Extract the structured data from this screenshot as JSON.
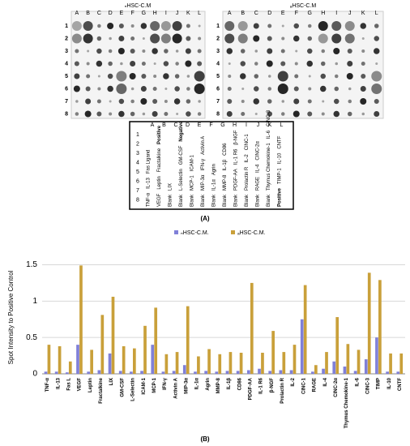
{
  "panel_a": {
    "blots": [
      {
        "title": "ₙHSC-C.M"
      },
      {
        "title": "ₐHSC-C.M"
      }
    ],
    "columns": [
      "A",
      "B",
      "C",
      "D",
      "E",
      "F",
      "G",
      "H",
      "I",
      "J",
      "K",
      "L"
    ],
    "rows": [
      "1",
      "2",
      "3",
      "4",
      "5",
      "6",
      "7",
      "8"
    ],
    "table": {
      "columns": [
        "A",
        "B",
        "C",
        "D",
        "E",
        "F",
        "G",
        "H",
        "I",
        "J",
        "K",
        "L"
      ],
      "rows": [
        "1",
        "2",
        "3",
        "4",
        "5",
        "6",
        "7",
        "8"
      ],
      "cells": [
        [
          "TNF-α",
          "IL-13",
          "Fas Ligand"
        ],
        [
          "VEGF",
          "Leptin",
          "Fractalkine",
          "Positive"
        ],
        [
          "Blank",
          "LIX"
        ],
        [
          "Blank",
          "L-Selectin",
          "GM-CSF",
          "Negative"
        ],
        [
          "Blank",
          "MCP-1",
          "ICAM-1"
        ],
        [
          "Blank",
          "MIP-3α",
          "IFN-γ",
          "Activin A"
        ],
        [
          "Blank",
          "IL-1α",
          "Agrin"
        ],
        [
          "Blank",
          "MMP-8",
          "IL-1β",
          "CD86"
        ],
        [
          "Blank",
          "PDGF-AA",
          "IL-1 R6",
          "β-NGF"
        ],
        [
          "Blank",
          "Prolactin R",
          "IL-2",
          "CINC-1"
        ],
        [
          "Blank",
          "RAGE",
          "IL-4",
          "CINC-2α"
        ],
        [
          "Blank",
          "Thymus Chemokine-1",
          "IL-6",
          "CINC-3"
        ],
        [
          "Positive",
          "TIMP-1",
          "IL-10",
          "CNTF"
        ]
      ]
    },
    "caption": "(A)"
  },
  "chart_data": {
    "type": "bar",
    "caption": "(B)",
    "y_label": "Spot Intensity to Positive Control",
    "categories": [
      "TNF-α",
      "IL-13",
      "Fas L",
      "VEGF",
      "Leptin",
      "Fractalkine",
      "LIX",
      "GM-CSF",
      "L-Selectin",
      "ICAM-1",
      "MCP-1",
      "IFN-γ",
      "Activin A",
      "MIP-3α",
      "IL-1α",
      "Agrin",
      "MMP-8",
      "IL-1β",
      "CD86",
      "PDGF-AA",
      "IL-1 R6",
      "β-NGF",
      "Prolactin R",
      "IL-2",
      "CINC-1",
      "RAGE",
      "IL-4",
      "CINC-2α",
      "Thymus Chemokine-1",
      "IL-6",
      "CINC-3",
      "TIMP",
      "IL-10",
      "CNTF"
    ],
    "series": [
      {
        "name": "ₙHSC-C.M.",
        "color": "#8080d8",
        "values": [
          0.03,
          0.03,
          0.02,
          0.4,
          0.03,
          0.05,
          0.28,
          0.04,
          0.03,
          0.04,
          0.4,
          0.03,
          0.04,
          0.12,
          0.03,
          0.04,
          0.03,
          0.04,
          0.04,
          0.05,
          0.07,
          0.04,
          0.05,
          0.05,
          0.75,
          0.03,
          0.07,
          0.17,
          0.1,
          0.04,
          0.2,
          0.5,
          0.03,
          0.03
        ]
      },
      {
        "name": "ₐHSC-C.M.",
        "color": "#c9a03a",
        "values": [
          0.4,
          0.38,
          0.17,
          1.49,
          0.33,
          0.81,
          1.06,
          0.38,
          0.35,
          0.66,
          0.91,
          0.27,
          0.3,
          0.93,
          0.24,
          0.34,
          0.27,
          0.3,
          0.29,
          1.25,
          0.29,
          0.59,
          0.3,
          0.4,
          1.22,
          0.12,
          0.3,
          0.78,
          0.41,
          0.33,
          1.39,
          1.29,
          0.28,
          0.28
        ]
      }
    ],
    "ylim": [
      0,
      1.55
    ],
    "yticks": [
      0,
      0.5,
      1,
      1.5
    ],
    "grid": true
  }
}
